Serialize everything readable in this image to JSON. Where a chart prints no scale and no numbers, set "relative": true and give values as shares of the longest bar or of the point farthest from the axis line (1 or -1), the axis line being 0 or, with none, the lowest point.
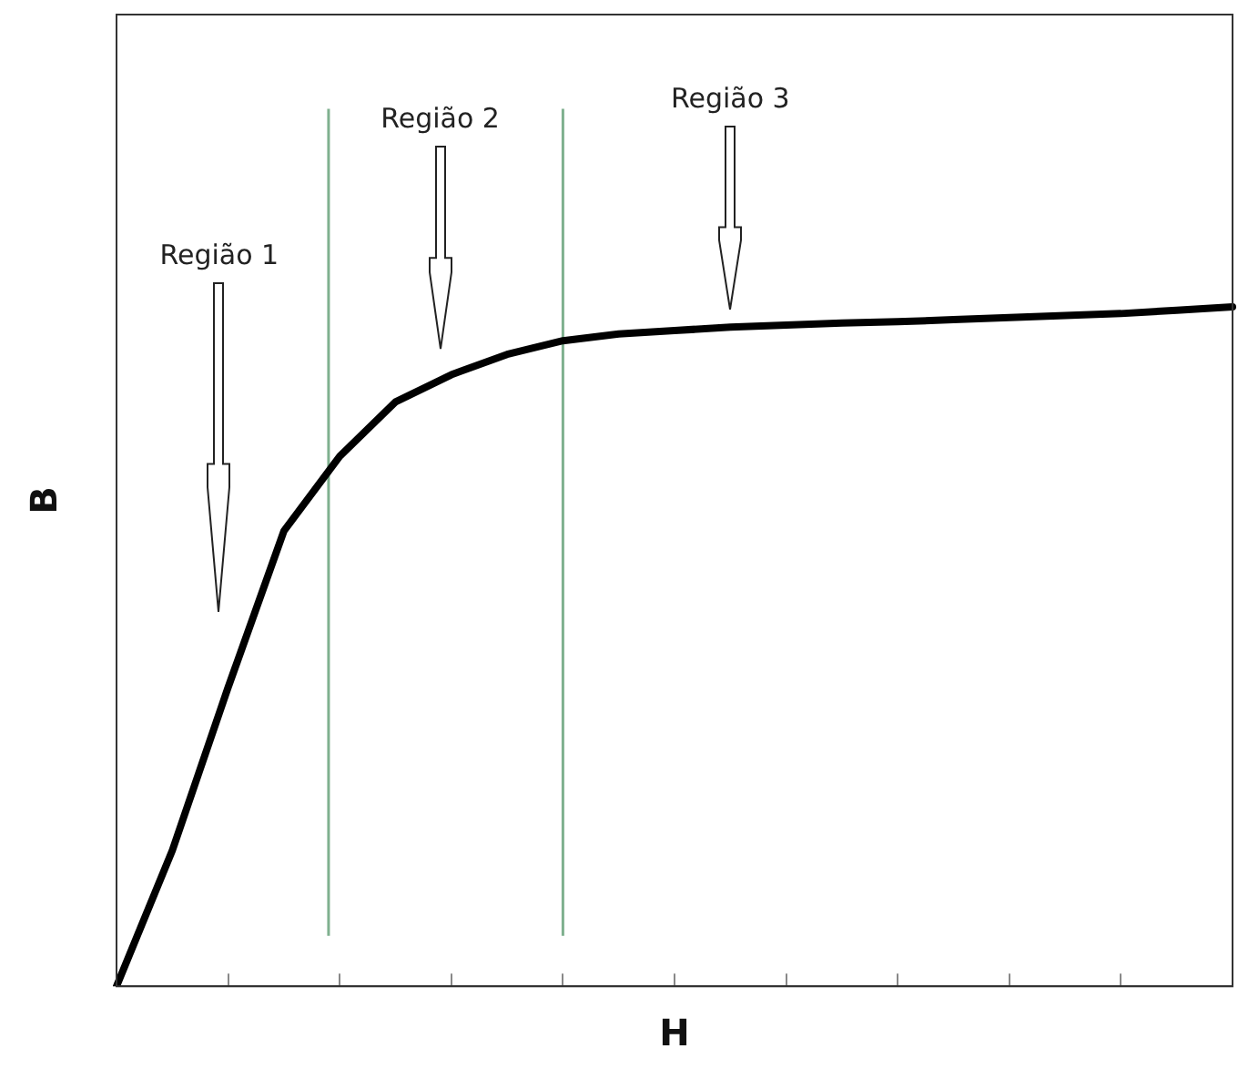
{
  "chart_data": {
    "type": "line",
    "xlabel": "H",
    "ylabel": "B",
    "relative": true,
    "categories": [
      null,
      null,
      null,
      null,
      null,
      null,
      null,
      null,
      null,
      null,
      null,
      null,
      null,
      null,
      null,
      null,
      null,
      null,
      null,
      null,
      null
    ],
    "series": [
      {
        "color": "#000000",
        "values": [
          0,
          0.2,
          0.44,
          0.67,
          0.78,
          0.86,
          0.9,
          0.93,
          0.95,
          0.96,
          0.965,
          0.97,
          0.973,
          0.976,
          0.978,
          0.981,
          0.984,
          0.987,
          0.99,
          0.995,
          1
        ]
      }
    ],
    "grid": false,
    "legend": false,
    "marker": "none",
    "line_style": "solid",
    "annotations": [
      "Região 1",
      "Região 2",
      "Região 3"
    ]
  }
}
